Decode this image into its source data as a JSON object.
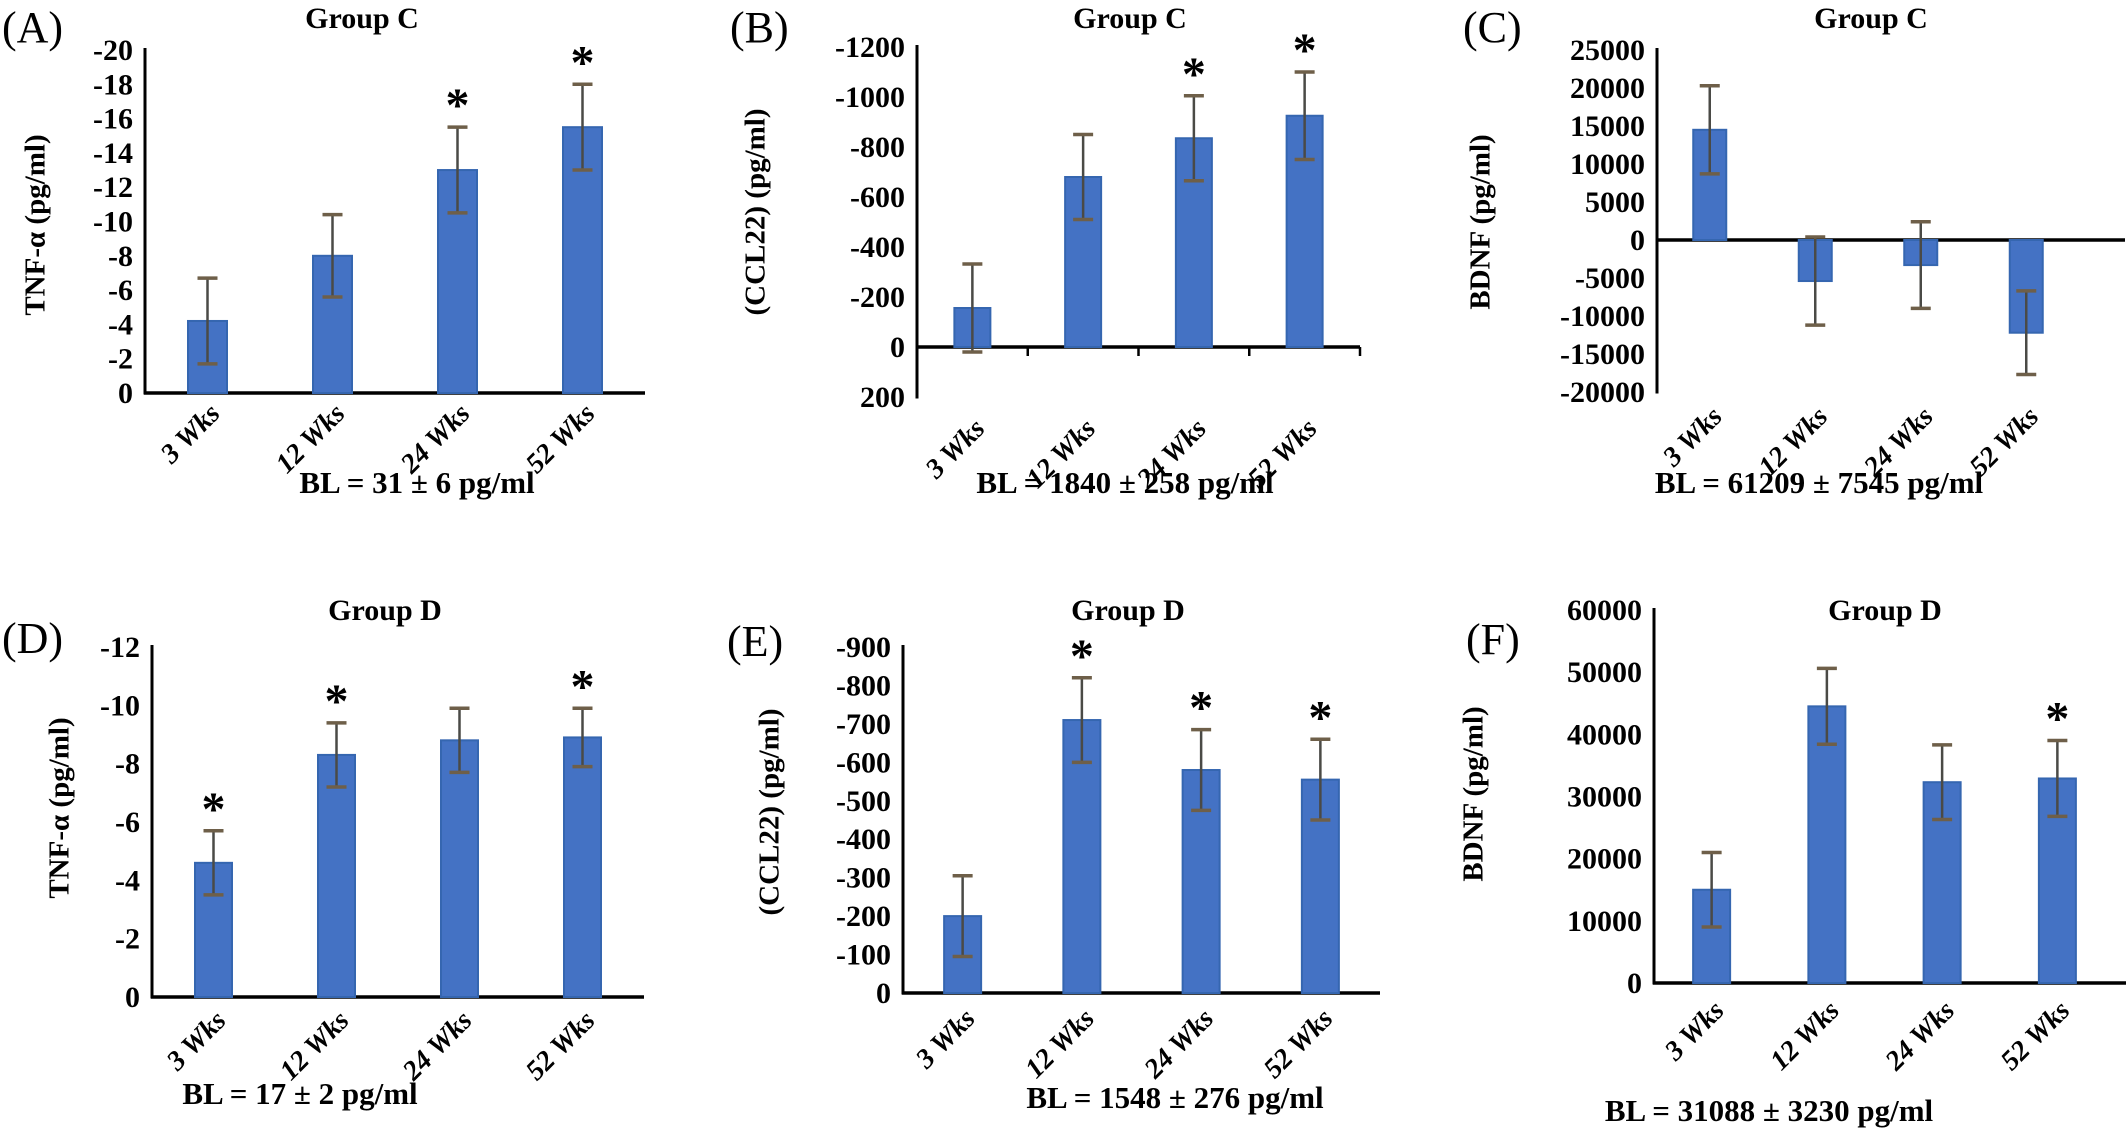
{
  "colors": {
    "background": "#FFFFFF",
    "bar_fill": "#4472C4",
    "bar_edge": "#3566B0",
    "error_line": "#4A4A46",
    "error_cap": "#6E5F49",
    "axis": "#000000",
    "text": "#000000"
  },
  "chart_data": [
    {
      "type": "bar",
      "panel_letter": "(A)",
      "title": "Group C",
      "ylabel": "TNF-α (pg/ml)",
      "categories": [
        "3 Wks",
        "12 Wks",
        "24 Wks",
        "52 Wks"
      ],
      "values": [
        -4.2,
        -8.0,
        -13.0,
        -15.5
      ],
      "errors": [
        2.5,
        2.4,
        2.5,
        2.5
      ],
      "significant": [
        false,
        false,
        true,
        true
      ],
      "ylim_bottom": 0,
      "ylim_top": -20,
      "yticks": [
        -20,
        -18,
        -16,
        -14,
        -12,
        -10,
        -8,
        -6,
        -4,
        -2,
        0
      ],
      "baseline_note": "BL =  31 ± 6 pg/ml"
    },
    {
      "type": "bar",
      "panel_letter": "(B)",
      "title": "Group C",
      "ylabel": "(CCL22) (pg/ml)",
      "categories": [
        "3 Wks",
        "12 Wks",
        "24 Wks",
        "52 Wks"
      ],
      "values": [
        -156,
        -680,
        -835,
        -925
      ],
      "errors": [
        176,
        170,
        170,
        175
      ],
      "significant": [
        false,
        false,
        true,
        true
      ],
      "ylim_bottom": 200,
      "ylim_top": -1200,
      "yticks": [
        -1200,
        -1000,
        -800,
        -600,
        -400,
        -200,
        0,
        200
      ],
      "baseline_note": "BL = 1840 ± 258 pg/ml"
    },
    {
      "type": "bar",
      "panel_letter": "(C)",
      "title": "Group C",
      "ylabel": "BDNF (pg/ml)",
      "categories": [
        "3 Wks",
        "12 Wks",
        "24 Wks",
        "52 Wks"
      ],
      "values": [
        14500,
        -5400,
        -3300,
        -12200
      ],
      "errors": [
        5800,
        5800,
        5700,
        5500
      ],
      "significant": [
        false,
        false,
        false,
        false
      ],
      "ylim_bottom": -20000,
      "ylim_top": 25000,
      "yticks": [
        25000,
        20000,
        15000,
        10000,
        5000,
        0,
        -5000,
        -10000,
        -15000,
        -20000
      ],
      "baseline_note": "BL = 61209 ± 7545 pg/ml"
    },
    {
      "type": "bar",
      "panel_letter": "(D)",
      "title": "Group D",
      "ylabel": "TNF-α (pg/ml)",
      "categories": [
        "3 Wks",
        "12 Wks",
        "24 Wks",
        "52 Wks"
      ],
      "values": [
        -4.6,
        -8.3,
        -8.8,
        -8.9
      ],
      "errors": [
        1.1,
        1.1,
        1.1,
        1.0
      ],
      "significant": [
        true,
        true,
        false,
        true
      ],
      "ylim_bottom": 0,
      "ylim_top": -12,
      "yticks": [
        -12,
        -10,
        -8,
        -6,
        -4,
        -2,
        0
      ],
      "baseline_note": "BL = 17 ± 2 pg/ml"
    },
    {
      "type": "bar",
      "panel_letter": "(E)",
      "title": "Group D",
      "ylabel": "(CCL22) (pg/ml)",
      "categories": [
        "3 Wks",
        "12 Wks",
        "24 Wks",
        "52 Wks"
      ],
      "values": [
        -200,
        -710,
        -580,
        -555
      ],
      "errors": [
        105,
        110,
        105,
        105
      ],
      "significant": [
        false,
        true,
        true,
        true
      ],
      "ylim_bottom": 0,
      "ylim_top": -900,
      "yticks": [
        -900,
        -800,
        -700,
        -600,
        -500,
        -400,
        -300,
        -200,
        -100,
        0
      ],
      "baseline_note": "BL = 1548 ± 276 pg/ml"
    },
    {
      "type": "bar",
      "panel_letter": "(F)",
      "title": "Group D",
      "ylabel": "BDNF (pg/ml)",
      "categories": [
        "3 Wks",
        "12 Wks",
        "24 Wks",
        "52 Wks"
      ],
      "values": [
        15000,
        44500,
        32300,
        32900
      ],
      "errors": [
        6000,
        6100,
        6000,
        6100
      ],
      "significant": [
        false,
        false,
        false,
        true
      ],
      "ylim_bottom": 0,
      "ylim_top": 60000,
      "yticks": [
        60000,
        50000,
        40000,
        30000,
        20000,
        10000,
        0
      ],
      "baseline_note": "BL = 31088 ± 3230 pg/ml"
    }
  ]
}
